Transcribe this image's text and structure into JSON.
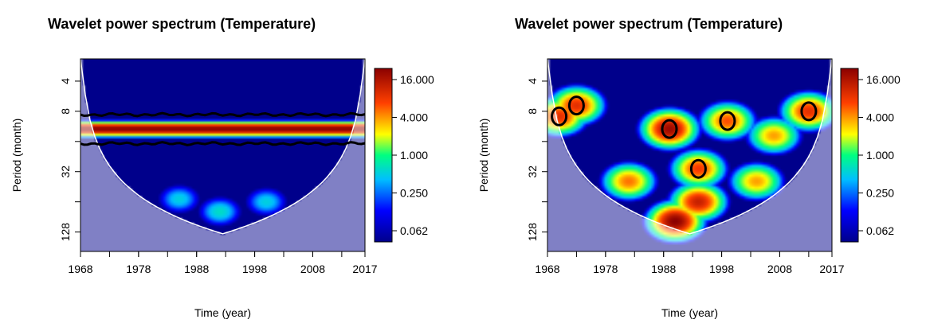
{
  "chart_data": [
    {
      "type": "heatmap",
      "title": "Wavelet power spectrum (Temperature)",
      "xlabel": "Time (year)",
      "ylabel": "Period (month)",
      "xlim": [
        1968,
        2017
      ],
      "xticks": [
        1968,
        1978,
        1988,
        1998,
        2008,
        2017
      ],
      "yticks": [
        4,
        8,
        32,
        128
      ],
      "y_scale": "log2",
      "colorbar": {
        "labels": [
          "16.000",
          "4.000",
          "1.000",
          "0.250",
          "0.062"
        ],
        "scale": "log"
      },
      "features": [
        {
          "kind": "annual-band",
          "period": 12,
          "power": 16,
          "years": [
            1968,
            2017
          ]
        },
        {
          "kind": "blob",
          "year": 1992,
          "period": 80,
          "power": 0.6
        },
        {
          "kind": "blob",
          "year": 1985,
          "period": 60,
          "power": 0.5
        },
        {
          "kind": "blob",
          "year": 2000,
          "period": 64,
          "power": 0.5
        }
      ]
    },
    {
      "type": "heatmap",
      "title": "Wavelet power spectrum (Temperature)",
      "xlabel": "Time (year)",
      "ylabel": "Period (month)",
      "xlim": [
        1968,
        2017
      ],
      "xticks": [
        1968,
        1978,
        1988,
        1998,
        2008,
        2017
      ],
      "yticks": [
        4,
        8,
        32,
        128
      ],
      "y_scale": "log2",
      "colorbar": {
        "labels": [
          "16.000",
          "4.000",
          "1.000",
          "0.250",
          "0.062"
        ],
        "scale": "log"
      },
      "features": [
        {
          "kind": "blob",
          "year": 1990,
          "period": 100,
          "power": 16
        },
        {
          "kind": "blob",
          "year": 1994,
          "period": 64,
          "power": 10
        },
        {
          "kind": "blob",
          "year": 1982,
          "period": 40,
          "power": 5
        },
        {
          "kind": "blob",
          "year": 2004,
          "period": 40,
          "power": 4
        },
        {
          "kind": "blob",
          "year": 1989,
          "period": 12,
          "power": 14
        },
        {
          "kind": "blob",
          "year": 1970,
          "period": 9,
          "power": 8
        },
        {
          "kind": "blob",
          "year": 1973,
          "period": 7,
          "power": 8
        },
        {
          "kind": "blob",
          "year": 1999,
          "period": 10,
          "power": 6
        },
        {
          "kind": "blob",
          "year": 2013,
          "period": 8,
          "power": 8
        },
        {
          "kind": "blob",
          "year": 2007,
          "period": 14,
          "power": 4
        },
        {
          "kind": "blob",
          "year": 1994,
          "period": 30,
          "power": 7
        }
      ]
    }
  ]
}
